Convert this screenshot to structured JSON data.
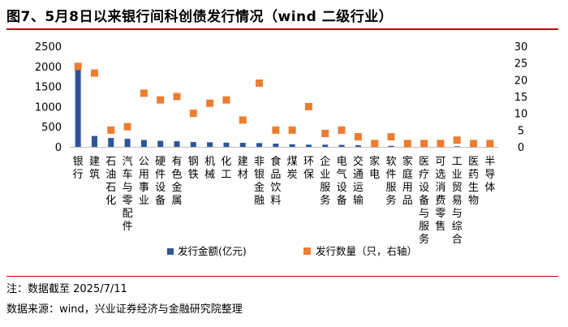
{
  "title": "图7、5月8日以来银行间科创债发行情况（wind 二级行业）",
  "notes": {
    "note1": "注：数据截至 2025/7/11",
    "source": "数据来源：wind，兴业证券经济与金融研究院整理"
  },
  "colors": {
    "bar": "#2e5597",
    "marker": "#ed7d31",
    "axis": "#bfbfbf",
    "rule": "#c00000"
  },
  "chart_data": {
    "type": "bar",
    "categories": [
      "银行",
      "建筑",
      "石油石化",
      "汽车与零配件",
      "公用事业",
      "硬件设备",
      "有色金属",
      "钢铁",
      "机械",
      "化工",
      "建材",
      "非银金融",
      "食品饮料",
      "煤炭",
      "环保",
      "企业服务",
      "电气设备",
      "交通运输",
      "家电",
      "软件服务",
      "家庭用品",
      "医疗设备与服务",
      "可选消费零售",
      "工业贸易与综合",
      "医药生物",
      "半导体"
    ],
    "series": [
      {
        "name": "发行金额(亿元)",
        "type": "bar",
        "axis": "left",
        "values": [
          1950,
          270,
          220,
          200,
          170,
          150,
          140,
          120,
          115,
          105,
          100,
          95,
          80,
          65,
          55,
          55,
          50,
          40,
          25,
          25,
          20,
          18,
          15,
          15,
          12,
          10
        ]
      },
      {
        "name": "发行数量（只，右轴）",
        "type": "scatter",
        "axis": "right",
        "values": [
          24,
          22,
          5,
          6,
          16,
          14,
          15,
          10,
          13,
          14,
          8,
          19,
          5,
          5,
          12,
          4,
          5,
          3,
          1,
          3,
          1,
          1,
          1,
          2,
          1,
          1
        ]
      }
    ],
    "y_left": {
      "ticks": [
        "0",
        "500",
        "1000",
        "1500",
        "2000",
        "2500"
      ],
      "ylim": [
        0,
        2500
      ]
    },
    "y_right": {
      "ticks": [
        "0",
        "5",
        "10",
        "15",
        "20",
        "25",
        "30"
      ],
      "ylim": [
        0,
        30
      ]
    },
    "legend_position": "bottom",
    "grid": false
  }
}
